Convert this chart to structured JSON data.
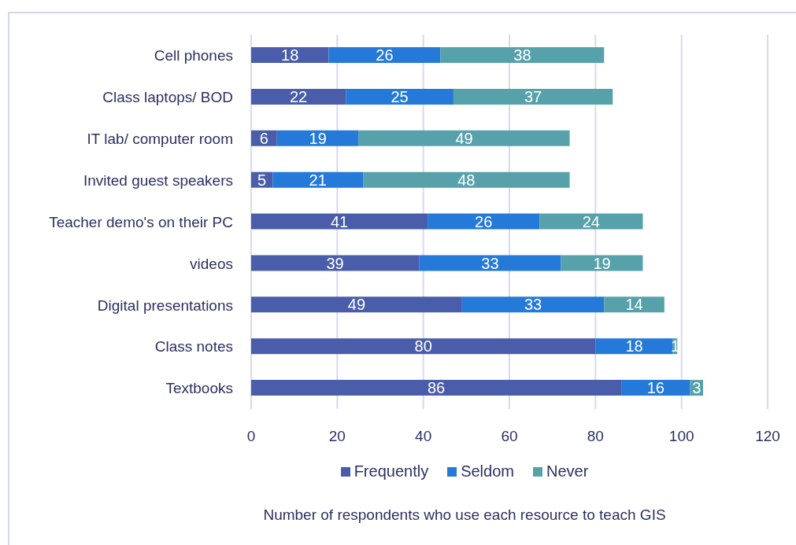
{
  "chart_data": {
    "type": "bar",
    "orientation": "horizontal",
    "stacked": true,
    "xlabel": "Number of respondents who use each resource to teach GIS",
    "categories": [
      "Cell phones",
      "Class laptops/ BOD",
      "IT lab/ computer room",
      "Invited guest speakers",
      "Teacher demo's on their PC",
      "videos",
      "Digital presentations",
      "Class notes",
      "Textbooks"
    ],
    "series": [
      {
        "name": "Frequently",
        "color": "#4a5daa",
        "values": [
          18,
          22,
          6,
          5,
          41,
          39,
          49,
          80,
          86
        ]
      },
      {
        "name": "Seldom",
        "color": "#2479d9",
        "values": [
          26,
          25,
          19,
          21,
          26,
          33,
          33,
          18,
          16
        ]
      },
      {
        "name": "Never",
        "color": "#57a1ab",
        "values": [
          38,
          37,
          49,
          48,
          24,
          19,
          14,
          1,
          3
        ]
      }
    ],
    "xlim": [
      0,
      120
    ],
    "xticks": [
      0,
      20,
      40,
      60,
      80,
      100,
      120
    ],
    "grid": "x",
    "legend": "bottom",
    "data_labels": true
  }
}
